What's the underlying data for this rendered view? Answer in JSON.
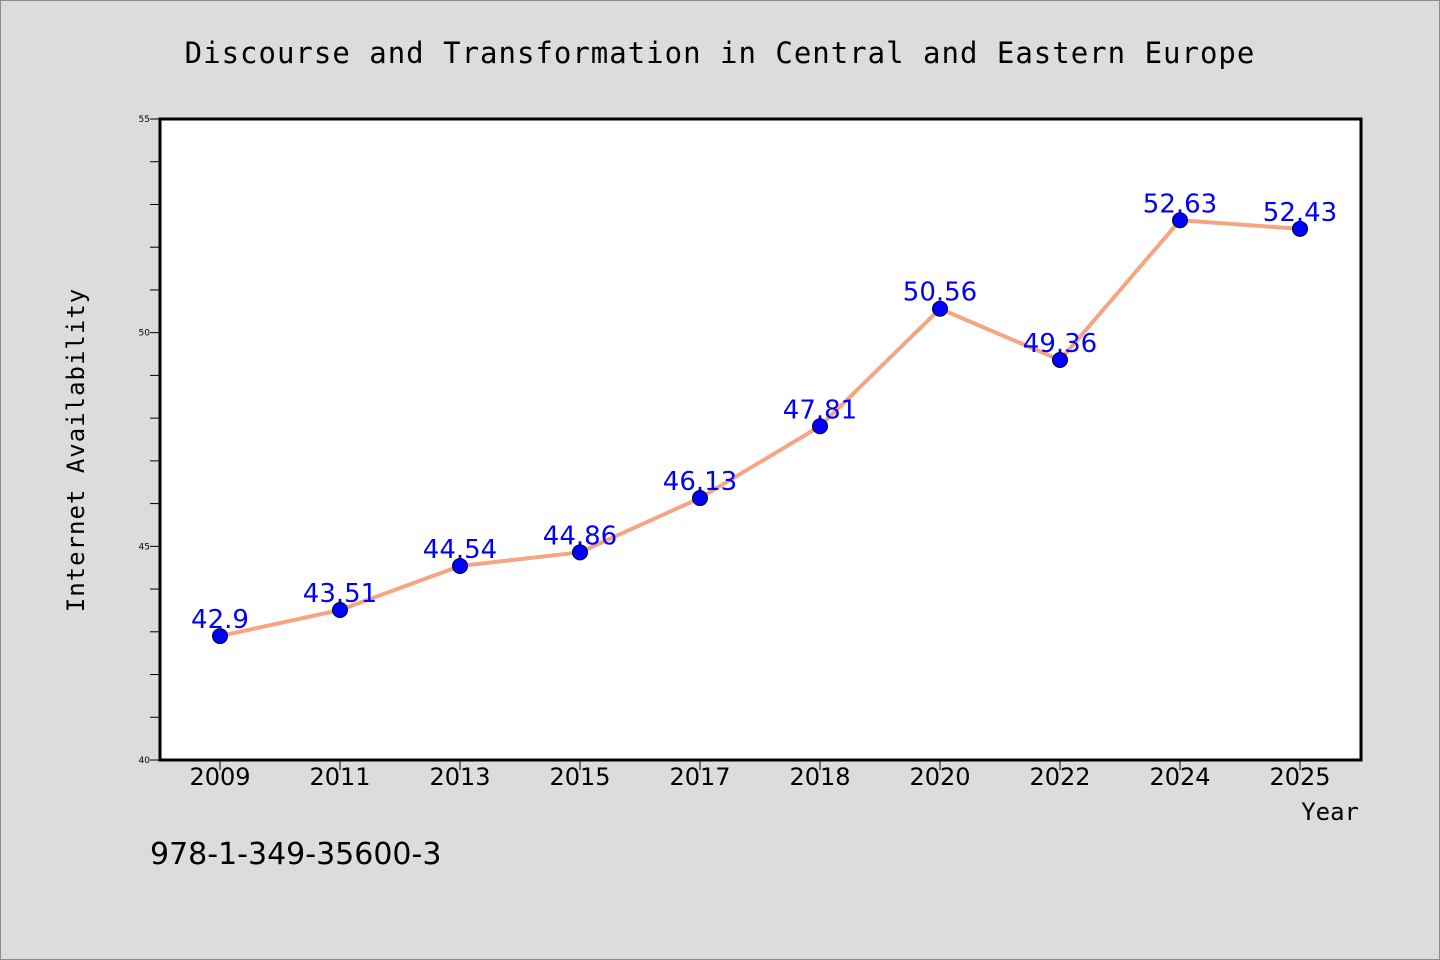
{
  "chart_data": {
    "type": "line",
    "title": "Discourse and Transformation in Central and Eastern Europe",
    "xlabel": "Year",
    "ylabel": "Internet Availability",
    "categories": [
      "2009",
      "2011",
      "2013",
      "2015",
      "2017",
      "2018",
      "2020",
      "2022",
      "2024",
      "2025"
    ],
    "series": [
      {
        "values": [
          42.9,
          43.51,
          44.54,
          44.86,
          46.13,
          47.81,
          50.56,
          49.36,
          52.63,
          52.43
        ],
        "labels": [
          "42.9",
          "43.51",
          "44.54",
          "44.86",
          "46.13",
          "47.81",
          "50.56",
          "49.36",
          "52.63",
          "52.43"
        ]
      }
    ],
    "ylim": [
      40,
      55
    ],
    "yticks": [
      "40",
      "45",
      "50",
      "55"
    ],
    "grid": false,
    "legend": "none",
    "colors": {
      "line": "#f4a582",
      "marker": "#0000ff",
      "data_label": "#0000ff",
      "background": "#dcdcdc",
      "plot_background": "#ffffff"
    }
  },
  "footer": {
    "isbn": "978-1-349-35600-3"
  }
}
